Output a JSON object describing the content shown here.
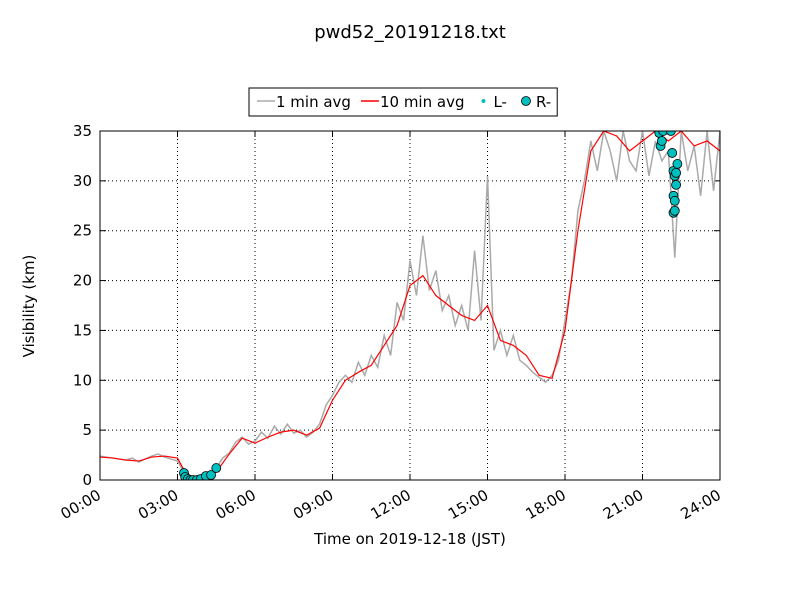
{
  "chart_data": {
    "type": "line",
    "title": "pwd52_20191218.txt",
    "xlabel": "Time on 2019-12-18 (JST)",
    "ylabel": "Visibility (km)",
    "xlim": [
      0,
      24
    ],
    "xticks": [
      {
        "value": 0,
        "label": "00:00"
      },
      {
        "value": 3,
        "label": "03:00"
      },
      {
        "value": 6,
        "label": "06:00"
      },
      {
        "value": 9,
        "label": "09:00"
      },
      {
        "value": 12,
        "label": "12:00"
      },
      {
        "value": 15,
        "label": "15:00"
      },
      {
        "value": 18,
        "label": "18:00"
      },
      {
        "value": 21,
        "label": "21:00"
      },
      {
        "value": 24,
        "label": "24:00"
      }
    ],
    "ylim": [
      0,
      35
    ],
    "yticks": [
      0,
      5,
      10,
      15,
      20,
      25,
      30,
      35
    ],
    "grid": true,
    "legend": "top",
    "series": [
      {
        "name": "1 min avg",
        "color": "#aaaaaa",
        "mark": "line",
        "x": [
          0,
          0.25,
          0.5,
          0.75,
          1,
          1.25,
          1.5,
          1.75,
          2,
          2.25,
          2.5,
          2.75,
          3,
          3.25,
          3.5,
          3.75,
          4,
          4.25,
          4.5,
          4.75,
          5,
          5.25,
          5.5,
          5.75,
          6,
          6.25,
          6.5,
          6.75,
          7,
          7.25,
          7.5,
          7.75,
          8,
          8.25,
          8.5,
          8.75,
          9,
          9.25,
          9.5,
          9.75,
          10,
          10.25,
          10.5,
          10.75,
          11,
          11.25,
          11.5,
          11.75,
          12,
          12.25,
          12.5,
          12.75,
          13,
          13.25,
          13.5,
          13.75,
          14,
          14.25,
          14.5,
          14.75,
          15,
          15.25,
          15.5,
          15.75,
          16,
          16.25,
          16.5,
          16.75,
          17,
          17.25,
          17.5,
          17.75,
          18,
          18.25,
          18.5,
          18.75,
          19,
          19.25,
          19.5,
          19.75,
          20,
          20.25,
          20.5,
          20.75,
          21,
          21.25,
          21.5,
          21.75,
          22,
          22.25,
          22.5,
          22.75,
          23,
          23.25,
          23.5,
          23.75,
          24
        ],
        "values": [
          2.4,
          2.3,
          2.2,
          2.1,
          2.0,
          2.2,
          1.8,
          2.1,
          2.4,
          2.6,
          2.3,
          2.1,
          1.9,
          0.8,
          0.2,
          0.1,
          0.1,
          0.4,
          1.2,
          2.2,
          2.7,
          3.8,
          4.3,
          3.6,
          3.9,
          4.8,
          4.2,
          5.4,
          4.6,
          5.6,
          4.7,
          5.0,
          4.3,
          4.8,
          5.6,
          7.5,
          8.5,
          9.8,
          10.5,
          9.8,
          11.8,
          10.5,
          12.5,
          11.3,
          14.5,
          12.5,
          17.8,
          16,
          22,
          18.5,
          24.5,
          19,
          21,
          17,
          18.5,
          15.5,
          17.5,
          15,
          23,
          16,
          30.5,
          13,
          15,
          12.5,
          14.5,
          12,
          11.5,
          10.8,
          10.3,
          9.8,
          10.5,
          12,
          16,
          20,
          27,
          30,
          34,
          31,
          35,
          33,
          30,
          35,
          32,
          31,
          35,
          30.5,
          34,
          32,
          33,
          22.3,
          35,
          31,
          33.5,
          28.5,
          35,
          29,
          35
        ]
      },
      {
        "name": "10 min avg",
        "color": "#ff0000",
        "mark": "line",
        "x": [
          0,
          0.5,
          1,
          1.5,
          2,
          2.5,
          3,
          3.25,
          3.5,
          4,
          4.5,
          5,
          5.5,
          6,
          6.5,
          7,
          7.5,
          8,
          8.5,
          9,
          9.5,
          10,
          10.5,
          11,
          11.5,
          12,
          12.5,
          13,
          13.5,
          14,
          14.5,
          15,
          15.5,
          16,
          16.5,
          17,
          17.5,
          18,
          18.5,
          19,
          19.5,
          20,
          20.5,
          21,
          21.5,
          22,
          22.5,
          23,
          23.5,
          24
        ],
        "values": [
          2.3,
          2.2,
          2.0,
          1.9,
          2.3,
          2.4,
          2.2,
          1,
          0.2,
          0.1,
          0.8,
          2.6,
          4.2,
          3.7,
          4.3,
          4.8,
          5.0,
          4.5,
          5.2,
          8,
          10,
          10.8,
          11.5,
          13.5,
          15.5,
          19.5,
          20.5,
          18.5,
          17.5,
          16.5,
          16,
          17.5,
          14,
          13.5,
          12.5,
          10.5,
          10.2,
          15,
          25,
          33,
          35,
          34.5,
          33,
          34,
          35,
          34,
          35,
          33.5,
          34,
          33
        ]
      },
      {
        "name": "L-",
        "color": "#00bfbf",
        "mark": "dot",
        "x": [],
        "values": []
      },
      {
        "name": "R-",
        "color": "#00bfbf",
        "mark": "circle",
        "x": [
          3.25,
          3.3,
          3.4,
          3.5,
          3.6,
          3.75,
          3.9,
          4.1,
          4.3,
          4.5,
          21.65,
          21.7,
          21.75,
          21.8,
          22.1,
          22.15,
          22.2,
          22.25,
          22.3,
          22.35,
          22.2,
          22.25,
          22.2,
          22.25,
          22.3
        ],
        "values": [
          0.7,
          0.3,
          0.1,
          0,
          0,
          0,
          0.1,
          0.4,
          0.5,
          1.2,
          34.8,
          33.5,
          34,
          35,
          35,
          32.8,
          31,
          30.5,
          29.6,
          31.7,
          28.5,
          28,
          26.8,
          27,
          30.8
        ]
      }
    ]
  }
}
